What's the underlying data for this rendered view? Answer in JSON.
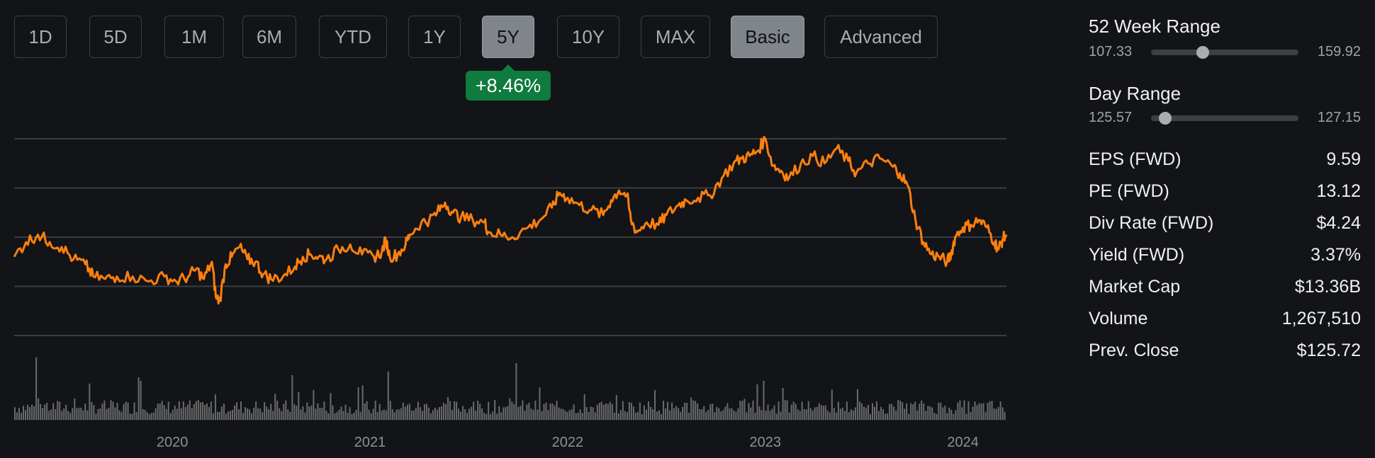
{
  "range_buttons": [
    {
      "label": "1D",
      "active": false
    },
    {
      "label": "5D",
      "active": false
    },
    {
      "label": "1M",
      "active": false
    },
    {
      "label": "6M",
      "active": false
    },
    {
      "label": "YTD",
      "active": false
    },
    {
      "label": "1Y",
      "active": false
    },
    {
      "label": "5Y",
      "active": true
    },
    {
      "label": "10Y",
      "active": false
    },
    {
      "label": "MAX",
      "active": false
    }
  ],
  "mode_buttons": [
    {
      "label": "Basic",
      "active": true
    },
    {
      "label": "Advanced",
      "active": false
    }
  ],
  "change_badge": "+8.46%",
  "colors": {
    "price_line": "#ff7f0e",
    "badge": "#0f7b3e",
    "volume": "#7a7a7a",
    "grid": "#3a3e43"
  },
  "week52": {
    "title": "52 Week Range",
    "low": "107.33",
    "high": "159.92",
    "current": 125.72
  },
  "day_range": {
    "title": "Day Range",
    "low": "125.57",
    "high": "127.15",
    "current": 125.72
  },
  "stats": [
    {
      "label": "EPS (FWD)",
      "value": "9.59"
    },
    {
      "label": "PE (FWD)",
      "value": "13.12"
    },
    {
      "label": "Div Rate (FWD)",
      "value": "$4.24"
    },
    {
      "label": "Yield (FWD)",
      "value": "3.37%"
    },
    {
      "label": "Market Cap",
      "value": "$13.36B"
    },
    {
      "label": "Volume",
      "value": "1,267,510"
    },
    {
      "label": "Prev. Close",
      "value": "$125.72"
    }
  ],
  "chart_data": {
    "type": "line",
    "ylim": [
      80,
      160
    ],
    "y_ticks": [
      160,
      140,
      120,
      100,
      80
    ],
    "x_ticks": [
      {
        "label": "2020",
        "x": 2020.0
      },
      {
        "label": "2021",
        "x": 2021.0
      },
      {
        "label": "2022",
        "x": 2022.0
      },
      {
        "label": "2023",
        "x": 2023.0
      },
      {
        "label": "2024",
        "x": 2024.0
      }
    ],
    "xlim": [
      2019.2,
      2024.22
    ],
    "series": [
      {
        "name": "",
        "points": [
          [
            2019.2,
            112
          ],
          [
            2019.26,
            118
          ],
          [
            2019.32,
            121
          ],
          [
            2019.38,
            118
          ],
          [
            2019.44,
            116
          ],
          [
            2019.5,
            111
          ],
          [
            2019.56,
            109
          ],
          [
            2019.6,
            104
          ],
          [
            2019.66,
            103
          ],
          [
            2019.72,
            104
          ],
          [
            2019.8,
            104
          ],
          [
            2019.88,
            102
          ],
          [
            2019.96,
            104
          ],
          [
            2020.02,
            102
          ],
          [
            2020.08,
            104
          ],
          [
            2020.12,
            107
          ],
          [
            2020.16,
            103
          ],
          [
            2020.2,
            110
          ],
          [
            2020.22,
            96
          ],
          [
            2020.24,
            94
          ],
          [
            2020.27,
            109
          ],
          [
            2020.3,
            112
          ],
          [
            2020.34,
            116
          ],
          [
            2020.38,
            111
          ],
          [
            2020.42,
            110
          ],
          [
            2020.46,
            105
          ],
          [
            2020.5,
            103
          ],
          [
            2020.56,
            104
          ],
          [
            2020.62,
            108
          ],
          [
            2020.66,
            112
          ],
          [
            2020.7,
            113
          ],
          [
            2020.74,
            112
          ],
          [
            2020.78,
            111
          ],
          [
            2020.84,
            115
          ],
          [
            2020.9,
            117
          ],
          [
            2020.96,
            113
          ],
          [
            2021.02,
            112
          ],
          [
            2021.06,
            114
          ],
          [
            2021.08,
            119
          ],
          [
            2021.1,
            112
          ],
          [
            2021.14,
            113
          ],
          [
            2021.18,
            117
          ],
          [
            2021.2,
            121
          ],
          [
            2021.26,
            126
          ],
          [
            2021.3,
            127
          ],
          [
            2021.34,
            130
          ],
          [
            2021.38,
            134
          ],
          [
            2021.42,
            130
          ],
          [
            2021.46,
            128
          ],
          [
            2021.52,
            127
          ],
          [
            2021.58,
            126
          ],
          [
            2021.6,
            122
          ],
          [
            2021.66,
            121
          ],
          [
            2021.72,
            120
          ],
          [
            2021.8,
            124
          ],
          [
            2021.86,
            127
          ],
          [
            2021.92,
            132
          ],
          [
            2021.96,
            138
          ],
          [
            2022.0,
            136
          ],
          [
            2022.06,
            133
          ],
          [
            2022.12,
            131
          ],
          [
            2022.18,
            129
          ],
          [
            2022.22,
            135
          ],
          [
            2022.26,
            139
          ],
          [
            2022.3,
            137
          ],
          [
            2022.32,
            127
          ],
          [
            2022.35,
            122
          ],
          [
            2022.4,
            126
          ],
          [
            2022.46,
            125
          ],
          [
            2022.5,
            129
          ],
          [
            2022.56,
            133
          ],
          [
            2022.6,
            135
          ],
          [
            2022.66,
            136
          ],
          [
            2022.72,
            137
          ],
          [
            2022.78,
            144
          ],
          [
            2022.84,
            150
          ],
          [
            2022.88,
            152
          ],
          [
            2022.92,
            153
          ],
          [
            2022.96,
            155
          ],
          [
            2023.0,
            160
          ],
          [
            2023.04,
            149
          ],
          [
            2023.08,
            147
          ],
          [
            2023.12,
            144
          ],
          [
            2023.18,
            150
          ],
          [
            2023.24,
            153
          ],
          [
            2023.3,
            150
          ],
          [
            2023.36,
            156
          ],
          [
            2023.42,
            151
          ],
          [
            2023.46,
            146
          ],
          [
            2023.52,
            150
          ],
          [
            2023.58,
            152
          ],
          [
            2023.64,
            149
          ],
          [
            2023.68,
            146
          ],
          [
            2023.72,
            141
          ],
          [
            2023.76,
            127
          ],
          [
            2023.8,
            118
          ],
          [
            2023.84,
            113
          ],
          [
            2023.88,
            112
          ],
          [
            2023.92,
            110
          ],
          [
            2023.94,
            113
          ],
          [
            2023.96,
            120
          ],
          [
            2024.0,
            124
          ],
          [
            2024.04,
            125
          ],
          [
            2024.08,
            127
          ],
          [
            2024.12,
            124
          ],
          [
            2024.16,
            118
          ],
          [
            2024.18,
            115
          ],
          [
            2024.2,
            119
          ],
          [
            2024.22,
            121
          ]
        ]
      }
    ],
    "volume_note": "daily volume bars (relative heights, no scale shown)"
  }
}
